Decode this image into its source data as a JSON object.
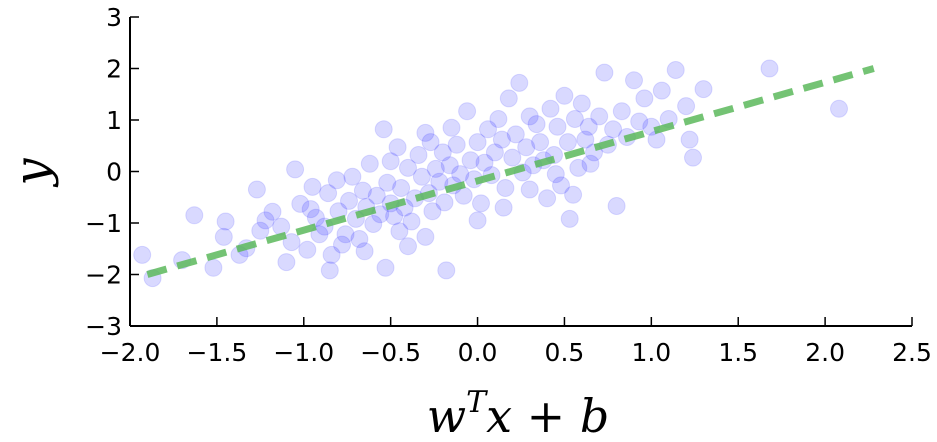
{
  "chart_data": {
    "type": "scatter",
    "title": "",
    "xlabel_base": "w",
    "xlabel_sup": "T",
    "xlabel_rest": "x + b",
    "ylabel": "y",
    "xlim": [
      -2.0,
      2.5
    ],
    "ylim": [
      -3,
      3
    ],
    "xticks": [
      -2.0,
      -1.5,
      -1.0,
      -0.5,
      0.0,
      0.5,
      1.0,
      1.5,
      2.0,
      2.5
    ],
    "xtick_labels": [
      "−2.0",
      "−1.5",
      "−1.0",
      "−0.5",
      "0.0",
      "0.5",
      "1.0",
      "1.5",
      "2.0",
      "2.5"
    ],
    "yticks": [
      -3,
      -2,
      -1,
      0,
      1,
      2,
      3
    ],
    "ytick_labels": [
      "−3",
      "−2",
      "−1",
      "0",
      "1",
      "2",
      "3"
    ],
    "grid": false,
    "colors": {
      "points": "#0000ff",
      "points_opacity": 0.15,
      "line": "#5cb85c"
    },
    "fit_line": {
      "x": [
        -1.9,
        2.28
      ],
      "y": [
        -2.0,
        2.0
      ]
    },
    "points": [
      {
        "x": -1.93,
        "y": -1.62
      },
      {
        "x": -1.87,
        "y": -2.07
      },
      {
        "x": -1.7,
        "y": -1.72
      },
      {
        "x": -1.63,
        "y": -0.85
      },
      {
        "x": -1.52,
        "y": -1.87
      },
      {
        "x": -1.46,
        "y": -1.27
      },
      {
        "x": -1.45,
        "y": -0.97
      },
      {
        "x": -1.37,
        "y": -1.62
      },
      {
        "x": -1.33,
        "y": -1.49
      },
      {
        "x": -1.27,
        "y": -0.35
      },
      {
        "x": -1.22,
        "y": -0.95
      },
      {
        "x": -1.18,
        "y": -0.78
      },
      {
        "x": -1.13,
        "y": -1.07
      },
      {
        "x": -1.1,
        "y": -1.76
      },
      {
        "x": -1.07,
        "y": -1.37
      },
      {
        "x": -1.05,
        "y": 0.04
      },
      {
        "x": -1.02,
        "y": -0.63
      },
      {
        "x": -0.98,
        "y": -1.52
      },
      {
        "x": -0.96,
        "y": -0.73
      },
      {
        "x": -0.93,
        "y": -0.9
      },
      {
        "x": -0.91,
        "y": -1.22
      },
      {
        "x": -0.88,
        "y": -1.07
      },
      {
        "x": -0.86,
        "y": -0.42
      },
      {
        "x": -0.84,
        "y": -1.62
      },
      {
        "x": -0.81,
        "y": -0.17
      },
      {
        "x": -0.8,
        "y": -0.77
      },
      {
        "x": -0.78,
        "y": -1.42
      },
      {
        "x": -0.76,
        "y": -1.22
      },
      {
        "x": -0.74,
        "y": -0.57
      },
      {
        "x": -0.72,
        "y": -0.1
      },
      {
        "x": -0.7,
        "y": -0.92
      },
      {
        "x": -0.68,
        "y": -1.31
      },
      {
        "x": -0.66,
        "y": -0.37
      },
      {
        "x": -0.64,
        "y": -0.69
      },
      {
        "x": -0.62,
        "y": 0.15
      },
      {
        "x": -0.6,
        "y": -1.02
      },
      {
        "x": -0.58,
        "y": -0.47
      },
      {
        "x": -0.56,
        "y": -0.83
      },
      {
        "x": -0.54,
        "y": 0.82
      },
      {
        "x": -0.53,
        "y": -1.87
      },
      {
        "x": -0.52,
        "y": -0.22
      },
      {
        "x": -0.5,
        "y": -0.62
      },
      {
        "x": -0.48,
        "y": -0.87
      },
      {
        "x": -0.46,
        "y": 0.47
      },
      {
        "x": -0.45,
        "y": -1.16
      },
      {
        "x": -0.44,
        "y": -0.32
      },
      {
        "x": -0.42,
        "y": -0.7
      },
      {
        "x": -0.4,
        "y": 0.07
      },
      {
        "x": -0.38,
        "y": -0.97
      },
      {
        "x": -0.36,
        "y": -0.52
      },
      {
        "x": -0.34,
        "y": 0.32
      },
      {
        "x": -0.32,
        "y": -0.1
      },
      {
        "x": -0.3,
        "y": -1.27
      },
      {
        "x": -0.28,
        "y": -0.42
      },
      {
        "x": -0.27,
        "y": 0.57
      },
      {
        "x": -0.26,
        "y": -0.77
      },
      {
        "x": -0.24,
        "y": 0.05
      },
      {
        "x": -0.22,
        "y": -0.2
      },
      {
        "x": -0.2,
        "y": 0.37
      },
      {
        "x": -0.19,
        "y": -0.6
      },
      {
        "x": -0.18,
        "y": -1.92
      },
      {
        "x": -0.16,
        "y": 0.12
      },
      {
        "x": -0.14,
        "y": -0.27
      },
      {
        "x": -0.12,
        "y": 0.52
      },
      {
        "x": -0.1,
        "y": -0.05
      },
      {
        "x": -0.08,
        "y": -0.47
      },
      {
        "x": -0.06,
        "y": 1.17
      },
      {
        "x": -0.04,
        "y": 0.22
      },
      {
        "x": -0.02,
        "y": -0.15
      },
      {
        "x": 0.0,
        "y": 0.57
      },
      {
        "x": 0.02,
        "y": -0.62
      },
      {
        "x": 0.04,
        "y": 0.17
      },
      {
        "x": 0.06,
        "y": 0.82
      },
      {
        "x": 0.08,
        "y": -0.07
      },
      {
        "x": 0.1,
        "y": 0.37
      },
      {
        "x": 0.12,
        "y": 1.02
      },
      {
        "x": 0.14,
        "y": 0.62
      },
      {
        "x": 0.16,
        "y": -0.32
      },
      {
        "x": 0.18,
        "y": 1.42
      },
      {
        "x": 0.2,
        "y": 0.27
      },
      {
        "x": 0.22,
        "y": 0.72
      },
      {
        "x": 0.24,
        "y": 1.72
      },
      {
        "x": 0.26,
        "y": -0.02
      },
      {
        "x": 0.28,
        "y": 0.47
      },
      {
        "x": 0.3,
        "y": 1.07
      },
      {
        "x": 0.32,
        "y": 0.12
      },
      {
        "x": 0.34,
        "y": 0.92
      },
      {
        "x": 0.36,
        "y": 0.57
      },
      {
        "x": 0.38,
        "y": 0.22
      },
      {
        "x": 0.4,
        "y": -0.52
      },
      {
        "x": 0.42,
        "y": 1.22
      },
      {
        "x": 0.44,
        "y": 0.32
      },
      {
        "x": 0.46,
        "y": 0.87
      },
      {
        "x": 0.48,
        "y": -0.27
      },
      {
        "x": 0.5,
        "y": 1.47
      },
      {
        "x": 0.52,
        "y": 0.57
      },
      {
        "x": 0.53,
        "y": -0.92
      },
      {
        "x": 0.56,
        "y": 1.02
      },
      {
        "x": 0.58,
        "y": 0.07
      },
      {
        "x": 0.6,
        "y": 1.32
      },
      {
        "x": 0.62,
        "y": 0.62
      },
      {
        "x": 0.64,
        "y": 0.87
      },
      {
        "x": 0.67,
        "y": 0.37
      },
      {
        "x": 0.7,
        "y": 1.07
      },
      {
        "x": 0.73,
        "y": 1.92
      },
      {
        "x": 0.75,
        "y": 0.52
      },
      {
        "x": 0.78,
        "y": 0.82
      },
      {
        "x": 0.8,
        "y": -0.67
      },
      {
        "x": 0.83,
        "y": 1.17
      },
      {
        "x": 0.86,
        "y": 0.67
      },
      {
        "x": 0.9,
        "y": 1.77
      },
      {
        "x": 0.93,
        "y": 0.97
      },
      {
        "x": 0.96,
        "y": 1.42
      },
      {
        "x": 1.0,
        "y": 0.87
      },
      {
        "x": 1.03,
        "y": 0.62
      },
      {
        "x": 1.06,
        "y": 1.57
      },
      {
        "x": 1.1,
        "y": 1.02
      },
      {
        "x": 1.14,
        "y": 1.97
      },
      {
        "x": 1.2,
        "y": 1.27
      },
      {
        "x": 1.24,
        "y": 0.27
      },
      {
        "x": 1.3,
        "y": 1.6
      },
      {
        "x": 1.68,
        "y": 2.0
      },
      {
        "x": 2.08,
        "y": 1.22
      },
      {
        "x": 1.22,
        "y": 0.62
      },
      {
        "x": -0.85,
        "y": -1.92
      },
      {
        "x": -0.5,
        "y": 0.2
      },
      {
        "x": -0.3,
        "y": 0.75
      },
      {
        "x": 0.0,
        "y": -0.95
      },
      {
        "x": 0.15,
        "y": -0.7
      },
      {
        "x": -0.65,
        "y": -1.55
      },
      {
        "x": 0.45,
        "y": -0.05
      },
      {
        "x": -1.25,
        "y": -1.15
      },
      {
        "x": -0.95,
        "y": -0.3
      },
      {
        "x": 0.3,
        "y": -0.35
      },
      {
        "x": -0.4,
        "y": -1.45
      },
      {
        "x": 0.65,
        "y": 0.15
      },
      {
        "x": -0.15,
        "y": 0.85
      },
      {
        "x": 0.55,
        "y": -0.45
      }
    ]
  }
}
